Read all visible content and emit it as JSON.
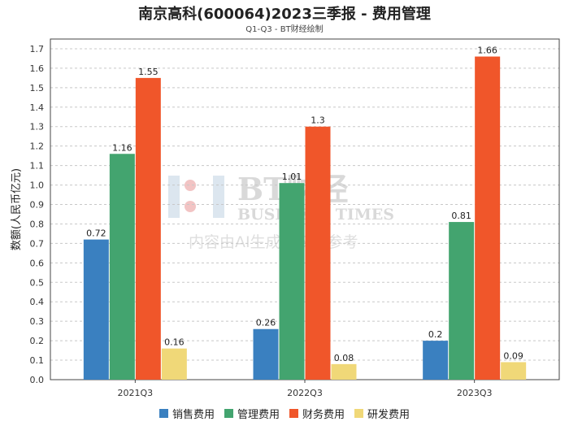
{
  "title": "南京高科(600064)2023三季报 - 费用管理",
  "subtitle": "Q1-Q3 - BT财经绘制",
  "watermark": {
    "brand": "BT财经",
    "brand_en": "BUSINESS TIMES",
    "notice": "内容由AI生成，仅供参考"
  },
  "chart_data": {
    "type": "bar",
    "categories": [
      "2021Q3",
      "2022Q3",
      "2023Q3"
    ],
    "ylabel": "数额(人民币亿元)",
    "xlabel": "",
    "ylim": [
      0,
      1.75
    ],
    "yticks": [
      0.0,
      0.1,
      0.2,
      0.3,
      0.4,
      0.5,
      0.6,
      0.7,
      0.8,
      0.9,
      1.0,
      1.1,
      1.2,
      1.3,
      1.4,
      1.5,
      1.6,
      1.7
    ],
    "grid": true,
    "legend_position": "bottom",
    "series": [
      {
        "name": "销售费用",
        "color": "#3a80c0",
        "values": [
          0.72,
          0.26,
          0.2
        ],
        "labels": [
          "0.72",
          "0.26",
          "0.2"
        ]
      },
      {
        "name": "管理费用",
        "color": "#43a46f",
        "values": [
          1.16,
          1.01,
          0.81
        ],
        "labels": [
          "1.16",
          "1.01",
          "0.81"
        ]
      },
      {
        "name": "财务费用",
        "color": "#f0562a",
        "values": [
          1.55,
          1.3,
          1.66
        ],
        "labels": [
          "1.55",
          "1.3",
          "1.66"
        ]
      },
      {
        "name": "研发费用",
        "color": "#f0d878",
        "values": [
          0.16,
          0.08,
          0.09
        ],
        "labels": [
          "0.16",
          "0.08",
          "0.09"
        ]
      }
    ]
  }
}
